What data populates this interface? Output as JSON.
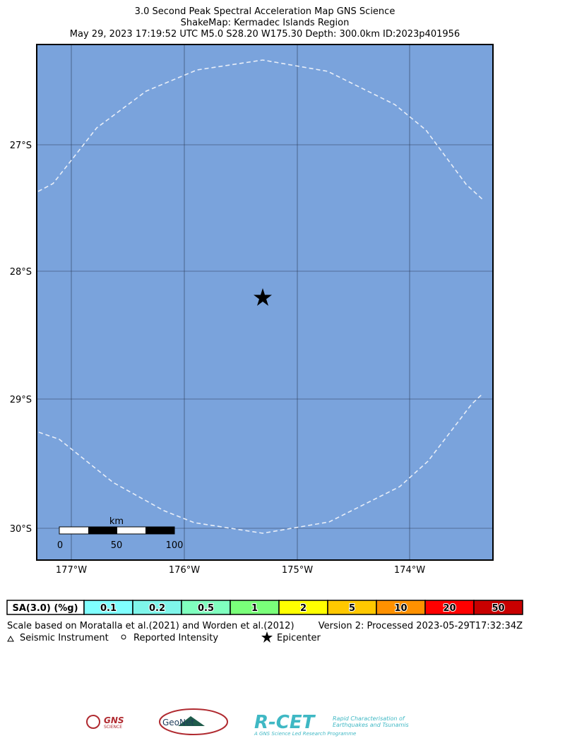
{
  "header": {
    "title": "3.0 Second Peak Spectral Acceleration Map GNS Science",
    "subtitle": "ShakeMap: Kermadec Islands Region",
    "event": "May 29, 2023 17:19:52 UTC M5.0 S28.20 W175.30 Depth: 300.0km ID:2023p401956"
  },
  "map": {
    "lat_labels": [
      "27°S",
      "28°S",
      "29°S",
      "30°S"
    ],
    "lon_labels": [
      "177°W",
      "176°W",
      "175°W",
      "174°W"
    ],
    "scale_bar": {
      "unit": "km",
      "labels": [
        "0",
        "50",
        "100"
      ]
    }
  },
  "legend": {
    "label": "SA(3.0) (%g)",
    "bins": [
      {
        "label": "0.1",
        "color": "#80ffff"
      },
      {
        "label": "0.2",
        "color": "#7ff5ea"
      },
      {
        "label": "0.5",
        "color": "#80ffbf"
      },
      {
        "label": "1",
        "color": "#7aff7a"
      },
      {
        "label": "2",
        "color": "#ffff00"
      },
      {
        "label": "5",
        "color": "#ffc800"
      },
      {
        "label": "10",
        "color": "#ff9100"
      },
      {
        "label": "20",
        "color": "#ff0000"
      },
      {
        "label": "50",
        "color": "#c80000"
      }
    ]
  },
  "notes": {
    "scale": "Scale based on Moratalla et al.(2021) and Worden et al.(2012)",
    "version": "Version 2: Processed 2023-05-29T17:32:34Z",
    "symbols": [
      "Seismic Instrument",
      "Reported Intensity",
      "Epicenter"
    ]
  },
  "logos": {
    "gns": "GNS",
    "gns_sub": "SCIENCE",
    "geonet": "GeoNet",
    "rcet": "R-CET",
    "rcet_sub1": "Rapid Characterisation of",
    "rcet_sub2": "Earthquakes and Tsunamis",
    "rcet_tag": "A GNS Science Led Research Programme"
  }
}
